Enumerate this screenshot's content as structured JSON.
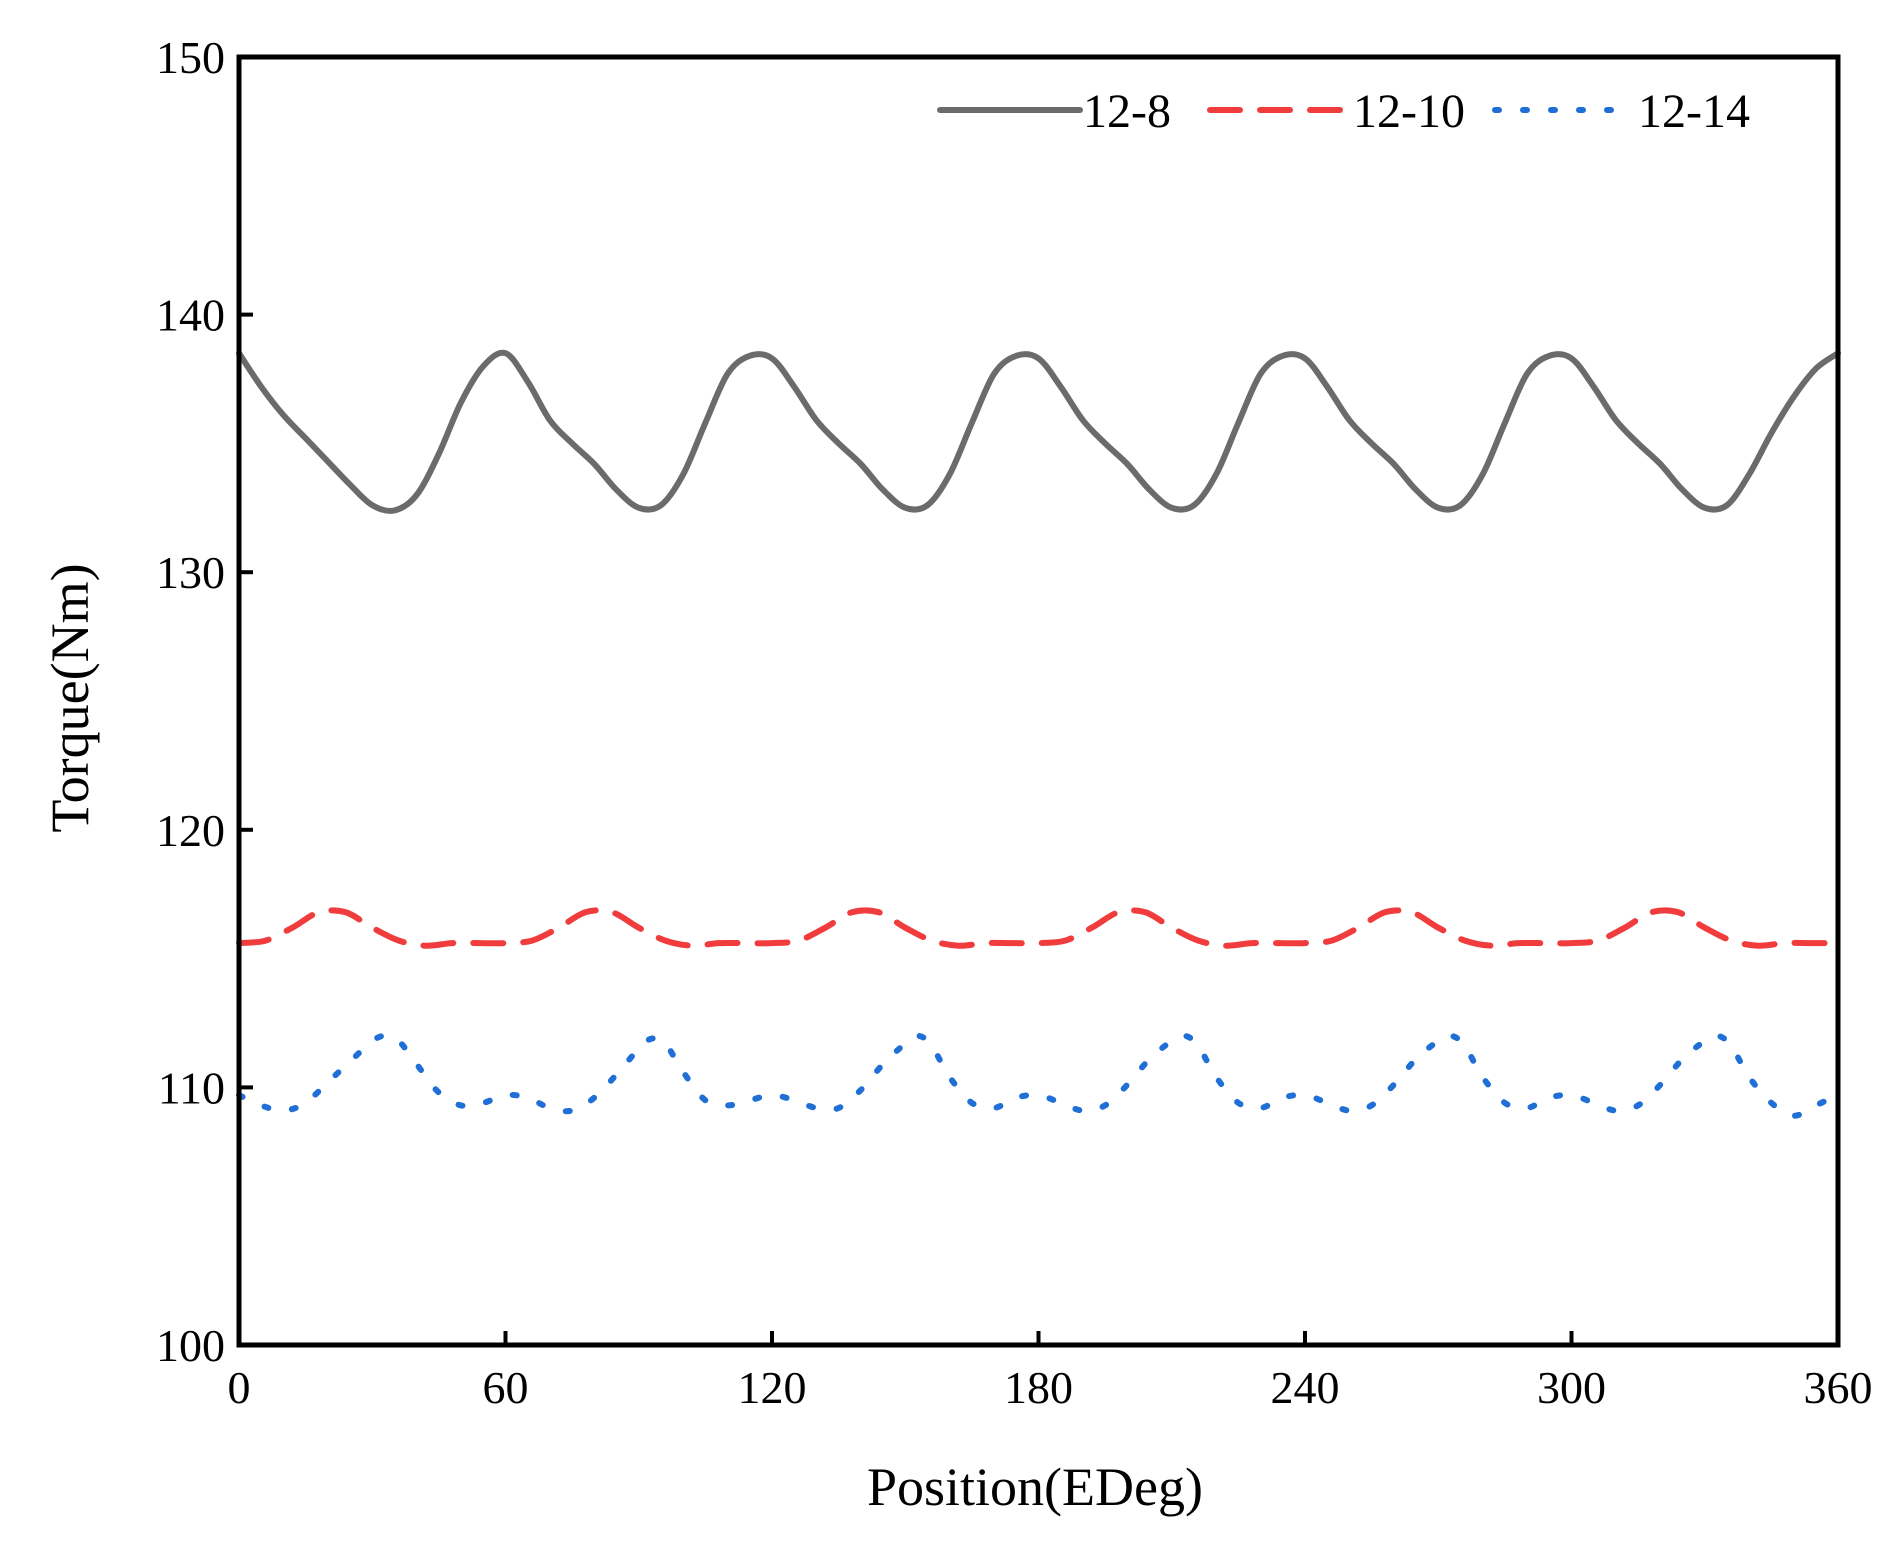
{
  "chart_data": {
    "type": "line",
    "xlabel": "Position(EDeg)",
    "ylabel": "Torque(Nm)",
    "xlim": [
      0,
      360
    ],
    "ylim": [
      100,
      150
    ],
    "xticks": [
      0,
      60,
      120,
      180,
      240,
      300,
      360
    ],
    "yticks": [
      100,
      110,
      120,
      130,
      140,
      150
    ],
    "grid": false,
    "legend_position": "top-right",
    "series": [
      {
        "name": "12-8",
        "color": "#6b6b6b",
        "style": "solid",
        "x": [
          0,
          5,
          10,
          15,
          20,
          25,
          30,
          35,
          40,
          45,
          50,
          55,
          60,
          65,
          70,
          75,
          80,
          85,
          90,
          95,
          100,
          105,
          110,
          115,
          120,
          125,
          130,
          135,
          140,
          145,
          150,
          155,
          160,
          165,
          170,
          175,
          180,
          185,
          190,
          195,
          200,
          205,
          210,
          215,
          220,
          225,
          230,
          235,
          240,
          245,
          250,
          255,
          260,
          265,
          270,
          275,
          280,
          285,
          290,
          295,
          300,
          305,
          310,
          315,
          320,
          325,
          330,
          335,
          340,
          345,
          350,
          355,
          360
        ],
        "y": [
          138.5,
          137.2,
          136.1,
          135.2,
          134.3,
          133.4,
          132.6,
          132.4,
          133.0,
          134.6,
          136.6,
          138.0,
          138.5,
          137.4,
          135.9,
          135.0,
          134.2,
          133.2,
          132.5,
          132.6,
          133.8,
          135.8,
          137.7,
          138.4,
          138.3,
          137.2,
          135.9,
          135.0,
          134.2,
          133.2,
          132.5,
          132.6,
          133.8,
          135.8,
          137.7,
          138.4,
          138.3,
          137.2,
          135.9,
          135.0,
          134.2,
          133.2,
          132.5,
          132.6,
          133.8,
          135.8,
          137.7,
          138.4,
          138.3,
          137.2,
          135.9,
          135.0,
          134.2,
          133.2,
          132.5,
          132.6,
          133.8,
          135.8,
          137.7,
          138.4,
          138.3,
          137.2,
          135.9,
          135.0,
          134.2,
          133.2,
          132.5,
          132.6,
          133.8,
          135.4,
          136.8,
          137.9,
          138.5
        ]
      },
      {
        "name": "12-10",
        "color": "#f03c3c",
        "style": "dashed",
        "x": [
          0,
          6,
          12,
          18,
          24,
          30,
          36,
          42,
          48,
          54,
          60,
          66,
          72,
          78,
          84,
          90,
          96,
          102,
          108,
          114,
          120,
          126,
          132,
          138,
          144,
          150,
          156,
          162,
          168,
          174,
          180,
          186,
          192,
          198,
          204,
          210,
          216,
          222,
          228,
          234,
          240,
          246,
          252,
          258,
          264,
          270,
          276,
          282,
          288,
          294,
          300,
          306,
          312,
          318,
          324,
          330,
          336,
          342,
          348,
          354,
          360
        ],
        "y": [
          115.6,
          115.7,
          116.2,
          116.8,
          116.8,
          116.2,
          115.7,
          115.5,
          115.6,
          115.6,
          115.6,
          115.7,
          116.2,
          116.8,
          116.8,
          116.2,
          115.7,
          115.5,
          115.6,
          115.6,
          115.6,
          115.7,
          116.2,
          116.8,
          116.8,
          116.2,
          115.7,
          115.5,
          115.6,
          115.6,
          115.6,
          115.7,
          116.2,
          116.8,
          116.8,
          116.2,
          115.7,
          115.5,
          115.6,
          115.6,
          115.6,
          115.7,
          116.2,
          116.8,
          116.8,
          116.2,
          115.7,
          115.5,
          115.6,
          115.6,
          115.6,
          115.7,
          116.2,
          116.8,
          116.8,
          116.2,
          115.7,
          115.5,
          115.6,
          115.6,
          115.6
        ]
      },
      {
        "name": "12-14",
        "color": "#1f6fd6",
        "style": "dotted",
        "x": [
          0,
          5,
          10,
          15,
          20,
          25,
          30,
          33,
          36,
          40,
          45,
          50,
          55,
          60,
          65,
          70,
          75,
          80,
          85,
          90,
          93,
          96,
          100,
          105,
          110,
          115,
          120,
          125,
          130,
          135,
          140,
          145,
          150,
          153,
          156,
          160,
          165,
          170,
          175,
          180,
          185,
          190,
          195,
          200,
          205,
          210,
          213,
          216,
          220,
          225,
          230,
          235,
          240,
          245,
          250,
          255,
          260,
          265,
          270,
          273,
          276,
          280,
          285,
          290,
          295,
          300,
          305,
          310,
          315,
          320,
          325,
          330,
          333,
          336,
          340,
          345,
          350,
          355,
          360
        ],
        "y": [
          109.7,
          109.3,
          109.1,
          109.4,
          110.2,
          111.0,
          111.8,
          112.0,
          111.8,
          110.9,
          109.8,
          109.3,
          109.4,
          109.7,
          109.6,
          109.2,
          109.1,
          109.6,
          110.5,
          111.5,
          111.9,
          111.7,
          110.6,
          109.5,
          109.3,
          109.5,
          109.7,
          109.5,
          109.2,
          109.2,
          109.9,
          110.9,
          111.7,
          112.0,
          111.6,
          110.4,
          109.4,
          109.2,
          109.6,
          109.7,
          109.4,
          109.1,
          109.3,
          110.1,
          111.1,
          111.8,
          112.0,
          111.6,
          110.4,
          109.4,
          109.2,
          109.6,
          109.7,
          109.4,
          109.1,
          109.3,
          110.1,
          111.1,
          111.8,
          112.0,
          111.6,
          110.4,
          109.4,
          109.2,
          109.6,
          109.7,
          109.4,
          109.1,
          109.3,
          110.1,
          111.1,
          111.8,
          112.0,
          111.6,
          110.4,
          109.4,
          108.9,
          109.3,
          109.7
        ]
      }
    ]
  }
}
